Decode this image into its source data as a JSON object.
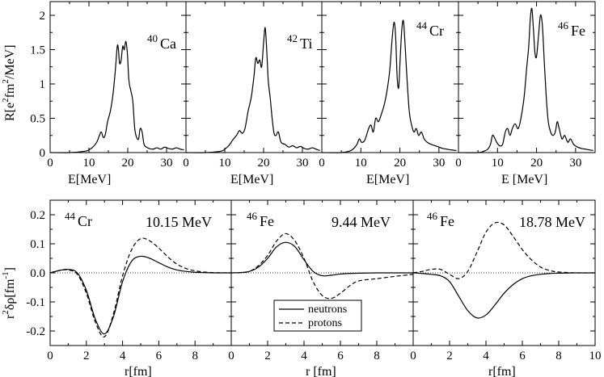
{
  "chart_data": [
    {
      "type": "line",
      "panel": "top-1",
      "nucleus": {
        "mass": "40",
        "symbol": "Ca"
      },
      "xlabel": "E[MeV]",
      "ylabel_parts": {
        "a": "R[e",
        "b": "2",
        "c": "fm",
        "d": "2",
        "e": "/MeV]"
      },
      "xlim": [
        0,
        35
      ],
      "ylim": [
        0,
        2.2
      ],
      "xticks": [
        0,
        10,
        20,
        30
      ],
      "yticks": [
        0,
        0.5,
        1,
        1.5,
        2
      ],
      "xtick_labels": [
        "0",
        "10",
        "20",
        "30"
      ],
      "ytick_labels": [
        "0",
        "0.5",
        "1",
        "1.5",
        "2"
      ],
      "series": [
        {
          "name": "R(E)",
          "style": "solid",
          "x": [
            0,
            5,
            9,
            10,
            11,
            12,
            12.7,
            13.2,
            13.7,
            14.2,
            14.8,
            15.5,
            16.2,
            16.8,
            17.3,
            17.6,
            17.9,
            18.3,
            18.7,
            19.1,
            19.5,
            19.9,
            20.3,
            20.8,
            21.3,
            21.8,
            22.3,
            22.8,
            23.2,
            23.7,
            24.2,
            24.8,
            25.5,
            26.5,
            27.5,
            28.5,
            29.5,
            30.5,
            31.5,
            32.5,
            33.5,
            34.5
          ],
          "y": [
            0,
            0,
            0.02,
            0.04,
            0.08,
            0.15,
            0.25,
            0.3,
            0.22,
            0.26,
            0.45,
            0.6,
            0.85,
            1.2,
            1.55,
            1.5,
            1.3,
            1.35,
            1.55,
            1.5,
            1.62,
            1.45,
            1.05,
            0.9,
            0.75,
            0.35,
            0.22,
            0.2,
            0.35,
            0.3,
            0.12,
            0.08,
            0.06,
            0.05,
            0.07,
            0.05,
            0.08,
            0.06,
            0.05,
            0.07,
            0.05,
            0.04
          ]
        }
      ]
    },
    {
      "type": "line",
      "panel": "top-2",
      "nucleus": {
        "mass": "42",
        "symbol": "Ti"
      },
      "xlabel": "E[MeV]",
      "xlim": [
        0,
        35
      ],
      "ylim": [
        0,
        2.2
      ],
      "xticks": [
        0,
        10,
        20,
        30
      ],
      "xtick_labels": [
        "0",
        "10",
        "20",
        "30"
      ],
      "series": [
        {
          "name": "R(E)",
          "style": "solid",
          "x": [
            0,
            5,
            9,
            10,
            11,
            12,
            13,
            13.8,
            14.5,
            15.2,
            16,
            16.8,
            17.5,
            18,
            18.5,
            19,
            19.5,
            20,
            20.4,
            20.8,
            21.2,
            21.7,
            22.2,
            22.7,
            23.2,
            23.8,
            24.5,
            25.5,
            26.5,
            27.5,
            28.5,
            29.5,
            30.5,
            31.5,
            32.5,
            33.5,
            34.5
          ],
          "y": [
            0,
            0,
            0.02,
            0.05,
            0.1,
            0.18,
            0.25,
            0.32,
            0.28,
            0.35,
            0.6,
            0.8,
            1.1,
            1.38,
            1.3,
            1.35,
            1.25,
            1.6,
            1.82,
            1.5,
            1.05,
            0.8,
            0.5,
            0.28,
            0.25,
            0.3,
            0.15,
            0.12,
            0.08,
            0.1,
            0.07,
            0.09,
            0.06,
            0.05,
            0.07,
            0.05,
            0.03
          ]
        }
      ]
    },
    {
      "type": "line",
      "panel": "top-3",
      "nucleus": {
        "mass": "44",
        "symbol": "Cr"
      },
      "xlabel": "E[MeV]",
      "xlim": [
        0,
        35
      ],
      "ylim": [
        0,
        2.2
      ],
      "xticks": [
        0,
        10,
        20,
        30
      ],
      "xtick_labels": [
        "0",
        "10",
        "20",
        "30"
      ],
      "series": [
        {
          "name": "R(E)",
          "style": "solid",
          "x": [
            0,
            5,
            7,
            8,
            9,
            9.6,
            10.2,
            11,
            12,
            12.6,
            13.2,
            13.8,
            14.5,
            15.2,
            16,
            16.7,
            17.4,
            18,
            18.5,
            18.9,
            19.3,
            19.7,
            20.1,
            20.5,
            20.9,
            21.3,
            21.8,
            22.4,
            23,
            23.6,
            24.2,
            24.8,
            25.5,
            26.2,
            27,
            28,
            29,
            30,
            31,
            32,
            33,
            34.5
          ],
          "y": [
            0,
            0,
            0.02,
            0.05,
            0.12,
            0.2,
            0.15,
            0.18,
            0.35,
            0.4,
            0.3,
            0.5,
            0.45,
            0.55,
            0.7,
            0.9,
            1.2,
            1.65,
            1.9,
            1.7,
            1.1,
            0.95,
            1.4,
            1.8,
            1.92,
            1.6,
            1.1,
            0.6,
            0.4,
            0.3,
            0.35,
            0.25,
            0.3,
            0.2,
            0.15,
            0.12,
            0.1,
            0.08,
            0.06,
            0.05,
            0.04,
            0.03
          ]
        }
      ]
    },
    {
      "type": "line",
      "panel": "top-4",
      "nucleus": {
        "mass": "46",
        "symbol": "Fe"
      },
      "xlabel": "E [MeV]",
      "xlim": [
        0,
        35
      ],
      "ylim": [
        0,
        2.2
      ],
      "xticks": [
        0,
        10,
        20,
        30
      ],
      "xtick_labels": [
        "0",
        "10",
        "20",
        "30"
      ],
      "series": [
        {
          "name": "R(E)",
          "style": "solid",
          "x": [
            0,
            5,
            6.5,
            7.5,
            8.2,
            8.7,
            9.2,
            9.8,
            10.5,
            11.3,
            12,
            12.6,
            13.2,
            13.8,
            14.5,
            15.3,
            16,
            16.8,
            17.5,
            18,
            18.4,
            18.8,
            19.2,
            19.6,
            20,
            20.5,
            21,
            21.5,
            22,
            22.5,
            23,
            23.6,
            24.2,
            24.8,
            25.3,
            25.8,
            26.5,
            27.2,
            28,
            28.7,
            29.5,
            30.5,
            31.5,
            32.5,
            33.5,
            34.5
          ],
          "y": [
            0,
            0,
            0.02,
            0.05,
            0.12,
            0.25,
            0.22,
            0.15,
            0.1,
            0.12,
            0.3,
            0.35,
            0.25,
            0.35,
            0.42,
            0.35,
            0.5,
            0.8,
            1.25,
            1.55,
            1.95,
            2.1,
            1.8,
            1.45,
            1.4,
            1.7,
            2.0,
            1.85,
            1.3,
            0.8,
            0.45,
            0.3,
            0.25,
            0.3,
            0.45,
            0.35,
            0.2,
            0.25,
            0.15,
            0.2,
            0.12,
            0.08,
            0.06,
            0.05,
            0.04,
            0.03
          ]
        }
      ]
    },
    {
      "type": "line",
      "panel": "bottom-1",
      "nucleus": {
        "mass": "44",
        "symbol": "Cr"
      },
      "energy_label": "10.15 MeV",
      "xlabel": "r[fm]",
      "ylabel_parts": {
        "a": "r",
        "b": "2",
        "c": "δρ[fm",
        "d": "-1",
        "e": "]"
      },
      "xlim": [
        0,
        10
      ],
      "ylim": [
        -0.25,
        0.25
      ],
      "xticks": [
        0,
        2,
        4,
        6,
        8
      ],
      "yticks": [
        -0.2,
        -0.1,
        0,
        0.1,
        0.2
      ],
      "xtick_labels": [
        "0",
        "2",
        "4",
        "6",
        "8"
      ],
      "ytick_labels": [
        "-0.2",
        "-0.1",
        "0.0",
        "0.1",
        "0.2"
      ],
      "series": [
        {
          "name": "neutrons",
          "style": "solid",
          "x": [
            0,
            0.5,
            1,
            1.5,
            2,
            2.5,
            3,
            3.5,
            4,
            4.5,
            5,
            5.5,
            6,
            6.5,
            7,
            7.5,
            8,
            8.5,
            9,
            10
          ],
          "y": [
            0,
            0.008,
            0.012,
            0.0,
            -0.06,
            -0.16,
            -0.21,
            -0.15,
            -0.03,
            0.04,
            0.057,
            0.05,
            0.035,
            0.02,
            0.01,
            0.005,
            0.002,
            0.001,
            0,
            0
          ]
        },
        {
          "name": "protons",
          "style": "dashed",
          "x": [
            0,
            0.5,
            1,
            1.5,
            2,
            2.5,
            3,
            3.5,
            4,
            4.5,
            5,
            5.5,
            6,
            6.5,
            7,
            7.5,
            8,
            8.5,
            9,
            10
          ],
          "y": [
            0,
            0.008,
            0.01,
            -0.005,
            -0.07,
            -0.17,
            -0.22,
            -0.14,
            -0.01,
            0.08,
            0.118,
            0.11,
            0.085,
            0.055,
            0.03,
            0.015,
            0.007,
            0.003,
            0.001,
            0
          ]
        }
      ]
    },
    {
      "type": "line",
      "panel": "bottom-2",
      "nucleus": {
        "mass": "46",
        "symbol": "Fe"
      },
      "energy_label": "9.44 MeV",
      "xlabel": "r [fm]",
      "xlim": [
        0,
        10
      ],
      "ylim": [
        -0.25,
        0.25
      ],
      "xticks": [
        0,
        2,
        4,
        6,
        8
      ],
      "xtick_labels": [
        "0",
        "2",
        "4",
        "6",
        "8"
      ],
      "legend": {
        "placement": "bottom-center",
        "entries": [
          {
            "label": "neutrons",
            "style": "solid"
          },
          {
            "label": "protons",
            "style": "dashed"
          }
        ]
      },
      "series": [
        {
          "name": "neutrons",
          "style": "solid",
          "x": [
            0,
            0.5,
            1,
            1.5,
            2,
            2.5,
            3,
            3.5,
            4,
            4.5,
            5,
            5.5,
            6,
            6.5,
            7,
            8,
            9,
            10
          ],
          "y": [
            0,
            0.001,
            0.005,
            0.02,
            0.05,
            0.09,
            0.105,
            0.09,
            0.045,
            0.005,
            -0.01,
            -0.008,
            -0.004,
            -0.002,
            -0.001,
            0,
            0,
            0
          ]
        },
        {
          "name": "protons",
          "style": "dashed",
          "x": [
            0,
            0.5,
            1,
            1.5,
            2,
            2.5,
            3,
            3.5,
            4,
            4.5,
            5,
            5.5,
            6,
            6.5,
            7,
            8,
            9,
            10
          ],
          "y": [
            0,
            0.001,
            0.005,
            0.025,
            0.06,
            0.11,
            0.135,
            0.11,
            0.05,
            -0.03,
            -0.078,
            -0.088,
            -0.07,
            -0.045,
            -0.028,
            -0.02,
            -0.012,
            -0.005
          ]
        }
      ]
    },
    {
      "type": "line",
      "panel": "bottom-3",
      "nucleus": {
        "mass": "46",
        "symbol": "Fe"
      },
      "energy_label": "18.78 MeV",
      "xlabel": "r[fm]",
      "xlim": [
        0,
        10
      ],
      "ylim": [
        -0.25,
        0.25
      ],
      "xticks": [
        0,
        2,
        4,
        6,
        8,
        10
      ],
      "xtick_labels": [
        "0",
        "2",
        "4",
        "6",
        "8",
        "10"
      ],
      "series": [
        {
          "name": "neutrons",
          "style": "solid",
          "x": [
            0,
            0.5,
            1,
            1.5,
            2,
            2.5,
            3,
            3.5,
            4,
            4.5,
            5,
            5.5,
            6,
            6.5,
            7,
            7.5,
            8,
            9,
            10
          ],
          "y": [
            0,
            -0.002,
            -0.005,
            -0.01,
            -0.03,
            -0.08,
            -0.13,
            -0.155,
            -0.145,
            -0.11,
            -0.07,
            -0.04,
            -0.02,
            -0.01,
            -0.005,
            -0.002,
            -0.001,
            0,
            0
          ]
        },
        {
          "name": "protons",
          "style": "dashed",
          "x": [
            0,
            0.5,
            1,
            1.5,
            2,
            2.5,
            3,
            3.5,
            4,
            4.5,
            5,
            5.5,
            6,
            6.5,
            7,
            7.5,
            8,
            9,
            10
          ],
          "y": [
            0,
            0.005,
            0.012,
            0.012,
            -0.005,
            -0.02,
            0.005,
            0.07,
            0.14,
            0.172,
            0.165,
            0.125,
            0.08,
            0.045,
            0.02,
            0.008,
            0.003,
            0,
            0
          ]
        }
      ]
    }
  ]
}
